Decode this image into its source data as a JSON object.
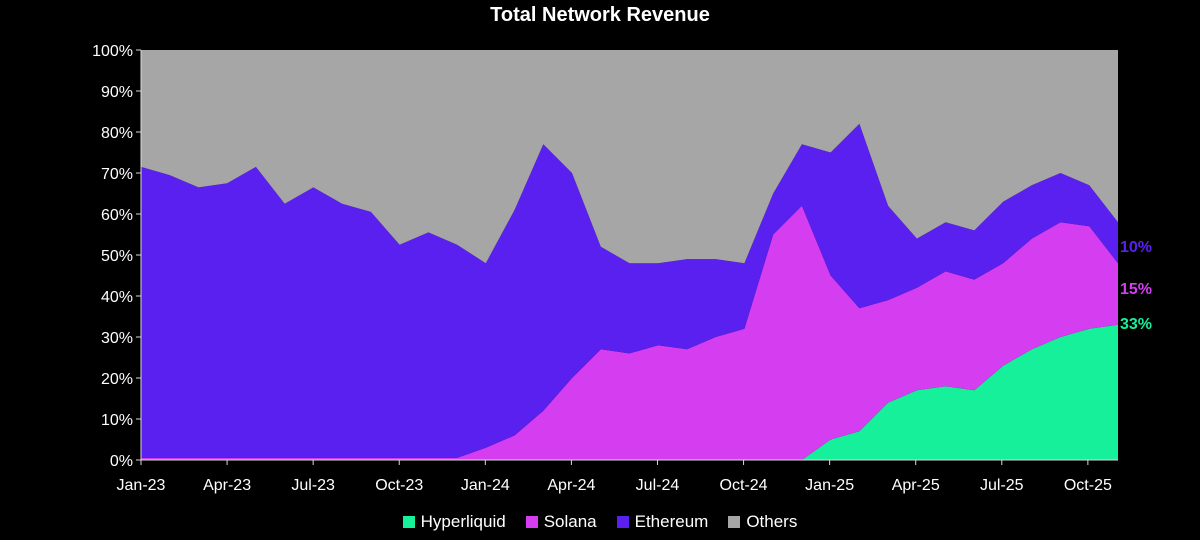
{
  "chart_data": {
    "type": "area",
    "stacked": true,
    "normalized_percent": true,
    "title": "Total Network Revenue",
    "xlabel": "",
    "ylabel": "",
    "ylim": [
      0,
      100
    ],
    "y_ticks": [
      "0%",
      "10%",
      "20%",
      "30%",
      "40%",
      "50%",
      "60%",
      "70%",
      "80%",
      "90%",
      "100%"
    ],
    "x_ticks": [
      "Jan-23",
      "Apr-23",
      "Jul-23",
      "Oct-23",
      "Jan-24",
      "Apr-24",
      "Jul-24",
      "Oct-24",
      "Jan-25",
      "Apr-25",
      "Jul-25",
      "Oct-25"
    ],
    "x": [
      "Jan-23",
      "Feb-23",
      "Mar-23",
      "Apr-23",
      "May-23",
      "Jun-23",
      "Jul-23",
      "Aug-23",
      "Sep-23",
      "Oct-23",
      "Nov-23",
      "Dec-23",
      "Jan-24",
      "Feb-24",
      "Mar-24",
      "Apr-24",
      "May-24",
      "Jun-24",
      "Jul-24",
      "Aug-24",
      "Sep-24",
      "Oct-24",
      "Nov-24",
      "Dec-24",
      "Jan-25",
      "Feb-25",
      "Mar-25",
      "Apr-25",
      "May-25",
      "Jun-25",
      "Jul-25",
      "Aug-25",
      "Sep-25",
      "Oct-25",
      "Oct-25 end"
    ],
    "series": [
      {
        "name": "Hyperliquid",
        "color": "#16f09a",
        "values": [
          0,
          0,
          0,
          0,
          0,
          0,
          0,
          0,
          0,
          0,
          0,
          0,
          0,
          0,
          0,
          0,
          0,
          0,
          0,
          0,
          0,
          0,
          0,
          0,
          5,
          7,
          14,
          17,
          18,
          17,
          23,
          27,
          30,
          32,
          33
        ]
      },
      {
        "name": "Solana",
        "color": "#d43ef0",
        "values": [
          0.5,
          0.5,
          0.5,
          0.5,
          0.5,
          0.5,
          0.5,
          0.5,
          0.5,
          0.5,
          0.5,
          0.5,
          3,
          6,
          12,
          20,
          27,
          26,
          28,
          27,
          30,
          32,
          55,
          62,
          40,
          30,
          25,
          25,
          28,
          27,
          25,
          27,
          28,
          25,
          15
        ]
      },
      {
        "name": "Ethereum",
        "color": "#5a20f0",
        "values": [
          71,
          69,
          66,
          67,
          71,
          62,
          66,
          62,
          60,
          52,
          55,
          52,
          45,
          55,
          65,
          50,
          25,
          22,
          20,
          22,
          19,
          16,
          10,
          15,
          30,
          45,
          23,
          12,
          12,
          12,
          15,
          13,
          12,
          10,
          10
        ]
      },
      {
        "name": "Others",
        "color": "#a6a6a6",
        "values": [
          28.5,
          30.5,
          33.5,
          32.5,
          28.5,
          37.5,
          33.5,
          37.5,
          39.5,
          47.5,
          44.5,
          47.5,
          52,
          39,
          23,
          30,
          48,
          52,
          52,
          51,
          51,
          52,
          35,
          23,
          25,
          18,
          38,
          46,
          42,
          44,
          37,
          33,
          30,
          33,
          42
        ]
      }
    ],
    "end_labels": [
      {
        "series": "Ethereum",
        "text": "10%",
        "color": "#5a20f0"
      },
      {
        "series": "Solana",
        "text": "15%",
        "color": "#d43ef0"
      },
      {
        "series": "Hyperliquid",
        "text": "33%",
        "color": "#16f09a"
      }
    ],
    "grid": false,
    "legend_position": "bottom"
  }
}
